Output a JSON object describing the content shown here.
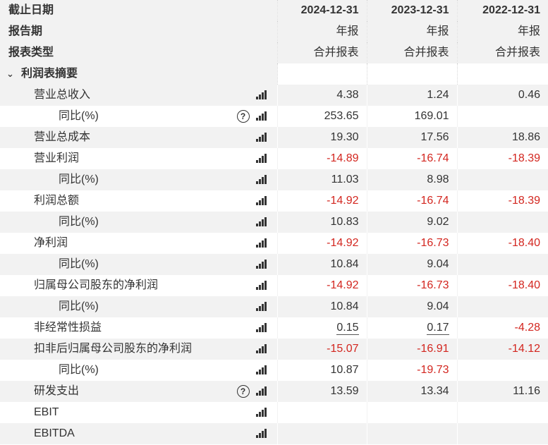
{
  "header": {
    "row1_label": "截止日期",
    "row2_label": "报告期",
    "row3_label": "报表类型",
    "periods": [
      {
        "date": "2024-12-31",
        "period": "年报",
        "type": "合并报表"
      },
      {
        "date": "2023-12-31",
        "period": "年报",
        "type": "合并报表"
      },
      {
        "date": "2022-12-31",
        "period": "年报",
        "type": "合并报表"
      }
    ]
  },
  "section": {
    "title": "利润表摘要",
    "chevron": "chevron-down-icon"
  },
  "rows": [
    {
      "label": "营业总收入",
      "v": [
        "4.38",
        "1.24",
        "0.46"
      ],
      "neg": [
        false,
        false,
        false
      ],
      "help": false
    },
    {
      "label": "同比(%)",
      "v": [
        "253.65",
        "169.01",
        ""
      ],
      "neg": [
        false,
        false,
        false
      ],
      "help": true
    },
    {
      "label": "营业总成本",
      "v": [
        "19.30",
        "17.56",
        "18.86"
      ],
      "neg": [
        false,
        false,
        false
      ],
      "help": false
    },
    {
      "label": "营业利润",
      "v": [
        "-14.89",
        "-16.74",
        "-18.39"
      ],
      "neg": [
        true,
        true,
        true
      ],
      "help": false
    },
    {
      "label": "同比(%)",
      "v": [
        "11.03",
        "8.98",
        ""
      ],
      "neg": [
        false,
        false,
        false
      ],
      "help": false
    },
    {
      "label": "利润总额",
      "v": [
        "-14.92",
        "-16.74",
        "-18.39"
      ],
      "neg": [
        true,
        true,
        true
      ],
      "help": false
    },
    {
      "label": "同比(%)",
      "v": [
        "10.83",
        "9.02",
        ""
      ],
      "neg": [
        false,
        false,
        false
      ],
      "help": false
    },
    {
      "label": "净利润",
      "v": [
        "-14.92",
        "-16.73",
        "-18.40"
      ],
      "neg": [
        true,
        true,
        true
      ],
      "help": false
    },
    {
      "label": "同比(%)",
      "v": [
        "10.84",
        "9.04",
        ""
      ],
      "neg": [
        false,
        false,
        false
      ],
      "help": false
    },
    {
      "label": "归属母公司股东的净利润",
      "v": [
        "-14.92",
        "-16.73",
        "-18.40"
      ],
      "neg": [
        true,
        true,
        true
      ],
      "help": false
    },
    {
      "label": "同比(%)",
      "v": [
        "10.84",
        "9.04",
        ""
      ],
      "neg": [
        false,
        false,
        false
      ],
      "help": false
    },
    {
      "label": "非经常性损益",
      "v": [
        "0.15",
        "0.17",
        "-4.28"
      ],
      "neg": [
        false,
        false,
        true
      ],
      "help": false
    },
    {
      "label": "扣非后归属母公司股东的净利润",
      "v": [
        "-15.07",
        "-16.91",
        "-14.12"
      ],
      "neg": [
        true,
        true,
        true
      ],
      "help": false
    },
    {
      "label": "同比(%)",
      "v": [
        "10.87",
        "-19.73",
        ""
      ],
      "neg": [
        false,
        true,
        false
      ],
      "help": false
    },
    {
      "label": "研发支出",
      "v": [
        "13.59",
        "13.34",
        "11.16"
      ],
      "neg": [
        false,
        false,
        false
      ],
      "help": true
    },
    {
      "label": "EBIT",
      "v": [
        "",
        "",
        ""
      ],
      "neg": [
        false,
        false,
        false
      ],
      "help": false
    },
    {
      "label": "EBITDA",
      "v": [
        "",
        "",
        ""
      ],
      "neg": [
        false,
        false,
        false
      ],
      "help": false
    }
  ],
  "colors": {
    "negative": "#d3261f",
    "text": "#333333",
    "shade": "#f2f2f2"
  }
}
